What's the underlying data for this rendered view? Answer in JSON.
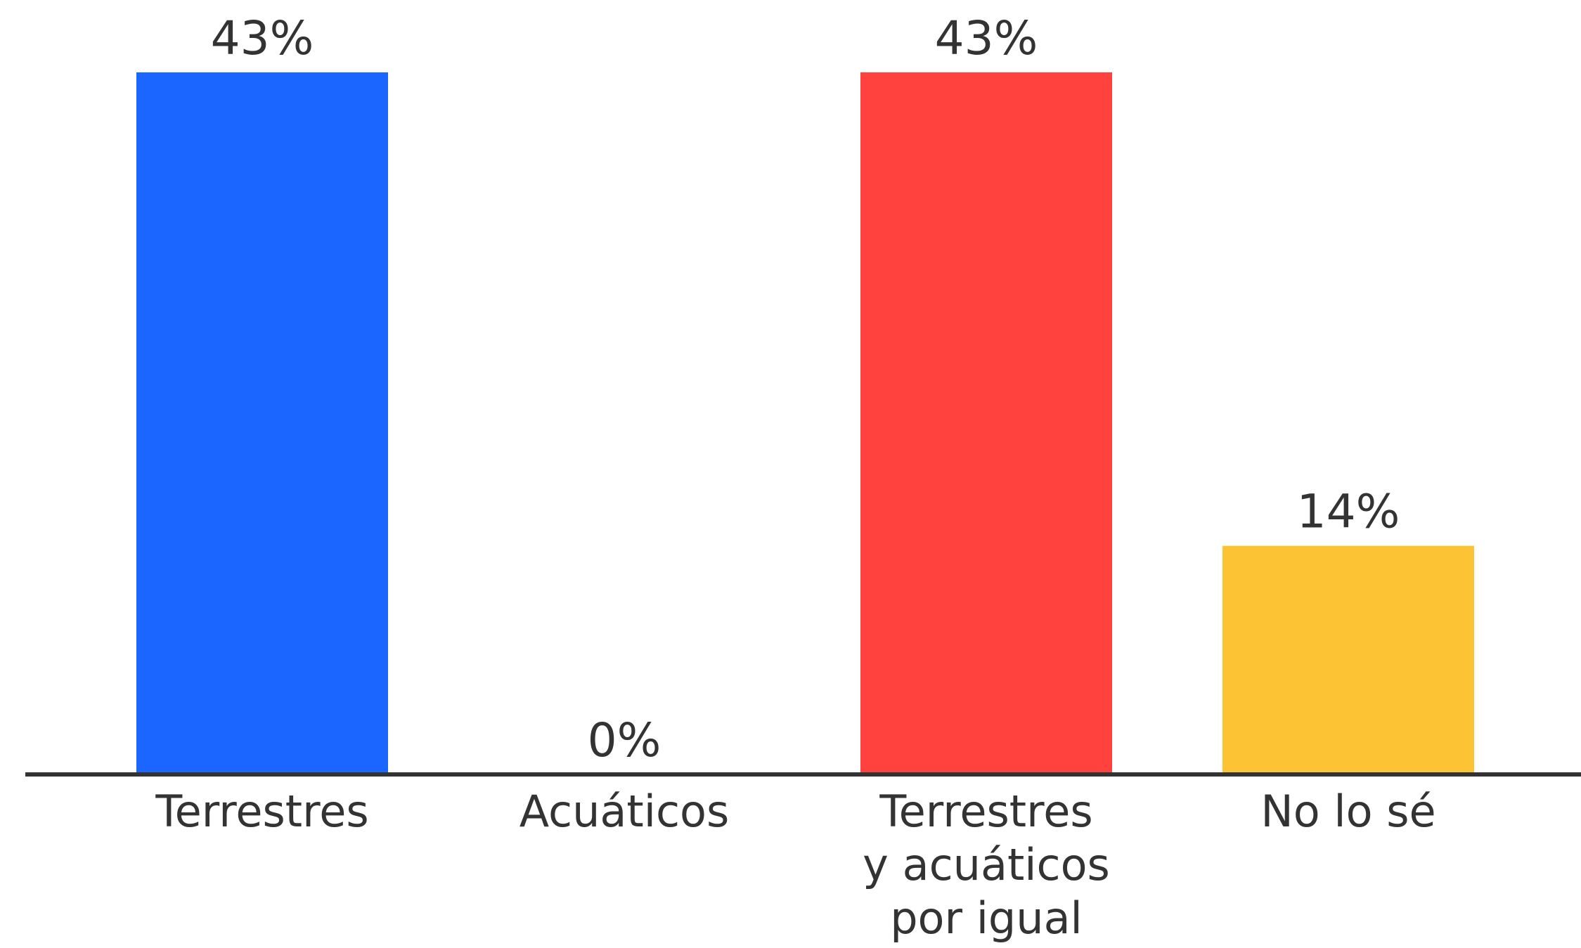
{
  "chart_data": {
    "type": "bar",
    "categories": [
      [
        "Terrestres"
      ],
      [
        "Acuáticos"
      ],
      [
        "Terrestres",
        "y acuáticos",
        "por igual"
      ],
      [
        "No lo sé"
      ]
    ],
    "values": [
      43,
      0,
      43,
      14
    ],
    "value_labels": [
      "43%",
      "0%",
      "43%",
      "14%"
    ],
    "colors": [
      "#1a66ff",
      "#1a66ff",
      "#ff423d",
      "#fcc434"
    ],
    "axis_color": "#333333",
    "ylim": [
      0,
      43
    ],
    "grid": false,
    "legend": "none"
  }
}
